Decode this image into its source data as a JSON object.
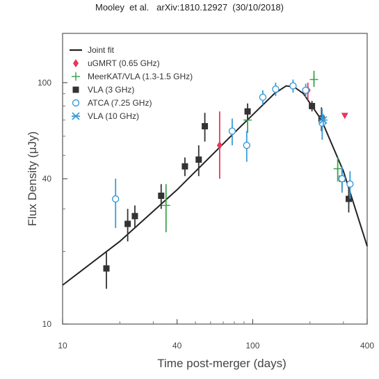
{
  "header": "Mooley  et al.   arXiv:1810.12927  (30/10/2018)",
  "chart_data": {
    "type": "scatter",
    "title": "",
    "xlabel": "Time post-merger (days)",
    "ylabel": "Flux Density (μJy)",
    "xscale": "log",
    "yscale": "log",
    "xlim": [
      10,
      400
    ],
    "ylim": [
      10,
      160
    ],
    "xticks": [
      10,
      40,
      100,
      400
    ],
    "yticks": [
      10,
      40,
      100
    ],
    "grid": false,
    "legend": "top-left",
    "fit": {
      "name": "Joint fit",
      "color": "#222222",
      "x": [
        10,
        20,
        40,
        80,
        130,
        150,
        165,
        185,
        230,
        300,
        400
      ],
      "y": [
        14.5,
        22,
        36,
        62,
        90,
        97,
        96,
        90,
        70,
        43,
        21
      ]
    },
    "series": [
      {
        "name": "uGMRT (0.65 GHz)",
        "marker": "diamond",
        "color": "#e8365a",
        "points": [
          {
            "x": 67,
            "y": 55,
            "ylo": 40,
            "yhi": 76
          },
          {
            "x": 195,
            "y": 93,
            "ylo": 85,
            "yhi": 100
          }
        ],
        "limits": [
          {
            "x": 305,
            "y": 73
          }
        ]
      },
      {
        "name": "MeerKAT/VLA (1.3-1.5 GHz)",
        "marker": "plus",
        "color": "#3aa54a",
        "points": [
          {
            "x": 35,
            "y": 31,
            "ylo": 24,
            "yhi": 38
          },
          {
            "x": 94,
            "y": 70,
            "ylo": 62,
            "yhi": 78
          },
          {
            "x": 210,
            "y": 103,
            "ylo": 96,
            "yhi": 112
          },
          {
            "x": 280,
            "y": 44,
            "ylo": 39,
            "yhi": 49
          }
        ]
      },
      {
        "name": "VLA (3 GHz)",
        "marker": "square",
        "color": "#333333",
        "points": [
          {
            "x": 17,
            "y": 17,
            "ylo": 14,
            "yhi": 20
          },
          {
            "x": 22,
            "y": 26,
            "ylo": 22,
            "yhi": 30
          },
          {
            "x": 24,
            "y": 28,
            "ylo": 25,
            "yhi": 31
          },
          {
            "x": 33,
            "y": 34,
            "ylo": 30,
            "yhi": 38
          },
          {
            "x": 44,
            "y": 45,
            "ylo": 41,
            "yhi": 49
          },
          {
            "x": 52,
            "y": 48,
            "ylo": 41,
            "yhi": 55
          },
          {
            "x": 56,
            "y": 66,
            "ylo": 57,
            "yhi": 75
          },
          {
            "x": 94,
            "y": 76,
            "ylo": 70,
            "yhi": 82
          },
          {
            "x": 205,
            "y": 80,
            "ylo": 76,
            "yhi": 84
          },
          {
            "x": 230,
            "y": 71,
            "ylo": 63,
            "yhi": 79
          },
          {
            "x": 295,
            "y": 40,
            "ylo": 36,
            "yhi": 44
          },
          {
            "x": 320,
            "y": 33,
            "ylo": 29,
            "yhi": 37
          }
        ]
      },
      {
        "name": "ATCA (7.25 GHz)",
        "marker": "circle",
        "color": "#3a9ad9",
        "points": [
          {
            "x": 19,
            "y": 33,
            "ylo": 25,
            "yhi": 40
          },
          {
            "x": 78,
            "y": 63,
            "ylo": 55,
            "yhi": 71
          },
          {
            "x": 93,
            "y": 55,
            "ylo": 47,
            "yhi": 63
          },
          {
            "x": 113,
            "y": 87,
            "ylo": 81,
            "yhi": 93
          },
          {
            "x": 132,
            "y": 94,
            "ylo": 88,
            "yhi": 100
          },
          {
            "x": 163,
            "y": 97,
            "ylo": 91,
            "yhi": 103
          },
          {
            "x": 190,
            "y": 93,
            "ylo": 87,
            "yhi": 99
          },
          {
            "x": 232,
            "y": 68,
            "ylo": 58,
            "yhi": 78
          },
          {
            "x": 295,
            "y": 40,
            "ylo": 35,
            "yhi": 45
          },
          {
            "x": 325,
            "y": 38,
            "ylo": 33,
            "yhi": 43
          }
        ]
      },
      {
        "name": "VLA (10 GHz)",
        "marker": "star",
        "color": "#3a9ad9",
        "points": [
          {
            "x": 235,
            "y": 70,
            "ylo": 66,
            "yhi": 74
          }
        ]
      }
    ]
  }
}
